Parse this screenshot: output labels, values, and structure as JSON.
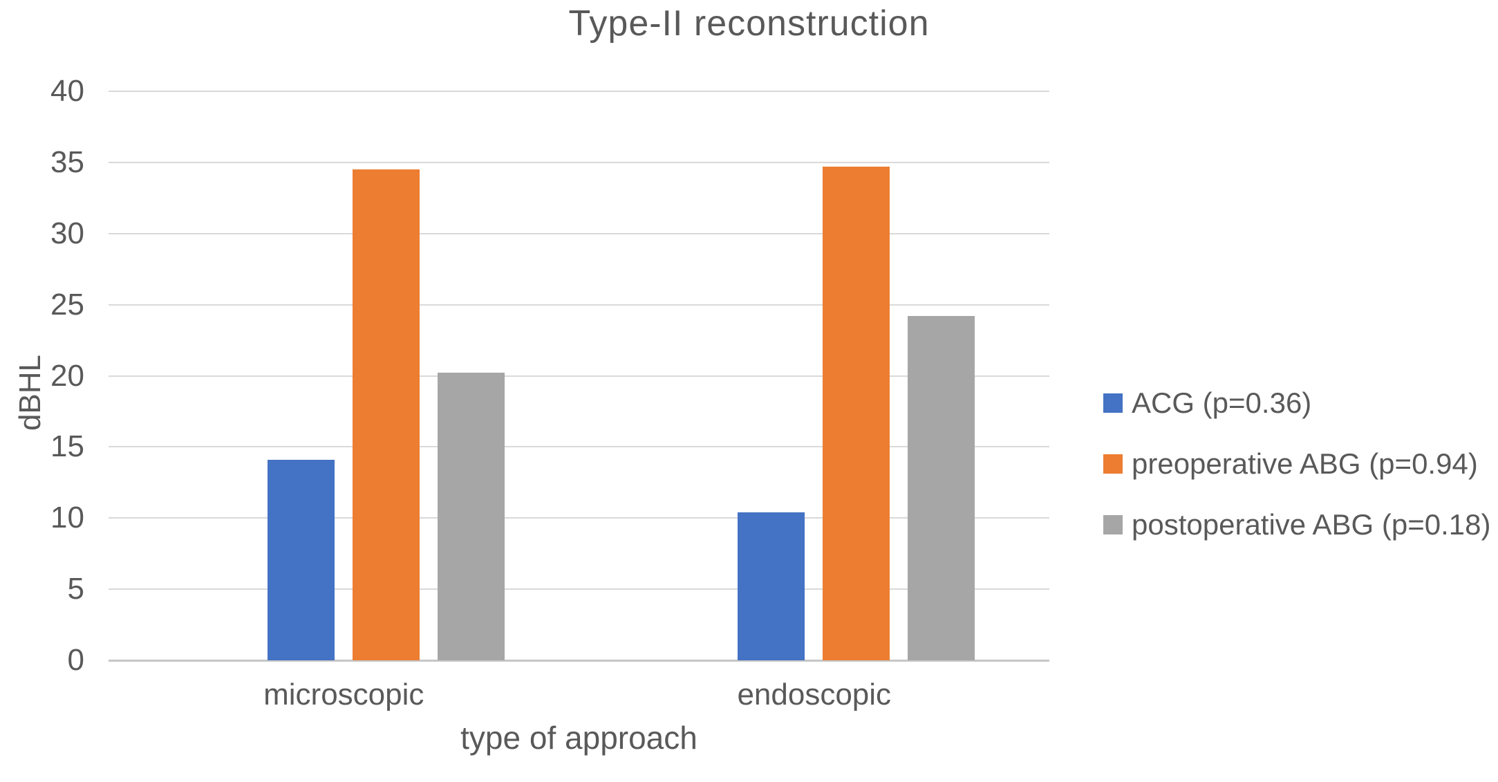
{
  "chart_data": {
    "type": "bar",
    "title": "Type-II reconstruction",
    "xlabel": "type of approach",
    "ylabel": "dBHL",
    "categories": [
      "microscopic",
      "endoscopic"
    ],
    "series": [
      {
        "name": "ACG (p=0.36)",
        "color": "#4472C4",
        "values": [
          14.1,
          10.4
        ]
      },
      {
        "name": "preoperative ABG (p=0.94)",
        "color": "#ED7D31",
        "values": [
          34.5,
          34.7
        ]
      },
      {
        "name": "postoperative ABG (p=0.18)",
        "color": "#A6A6A6",
        "values": [
          20.2,
          24.2
        ]
      }
    ],
    "ylim": [
      0,
      40
    ],
    "yticks": [
      0,
      5,
      10,
      15,
      20,
      25,
      30,
      35,
      40
    ],
    "grid": true,
    "legend_position": "right",
    "colors": {
      "text": "#595959",
      "gridline": "#D9D9D9",
      "axis_line": "#C6C6C6",
      "background": "#FFFFFF"
    }
  }
}
